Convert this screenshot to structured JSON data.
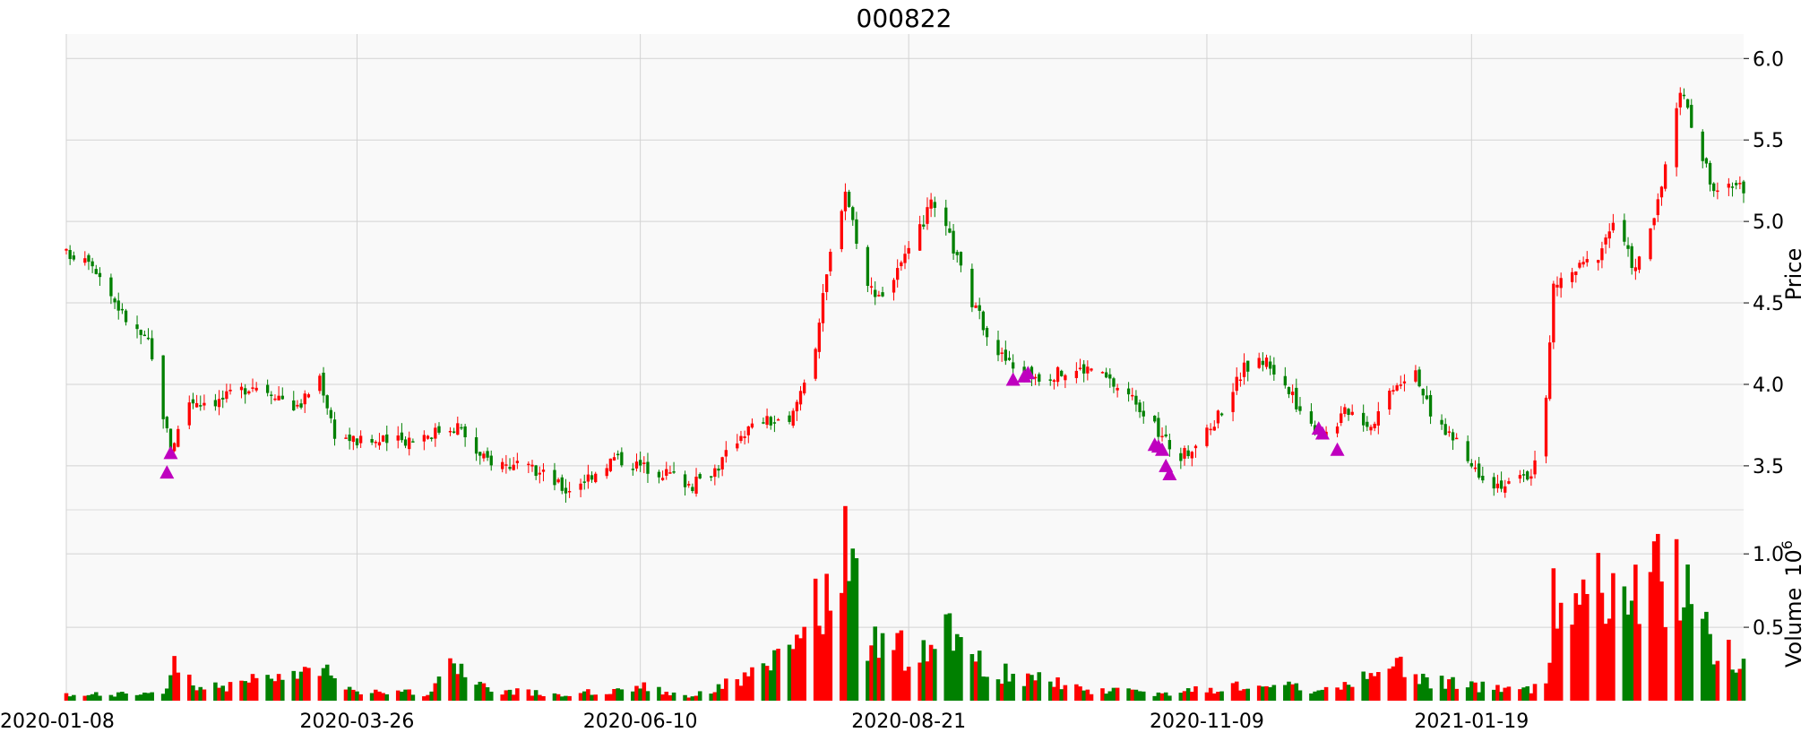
{
  "chart_data": {
    "type": "candlestick",
    "title": "000822",
    "price_ylabel": "Price",
    "volume_ylabel": "Volume",
    "volume_exponent_label": "10",
    "volume_exponent": "6",
    "up_color": "#ff0000",
    "down_color": "#008000",
    "marker_color": "#bf00bf",
    "panel_background": "#f9f9f9",
    "grid": true,
    "price_ylim": [
      3.23,
      6.15
    ],
    "volume_ylim": [
      0,
      1.3
    ],
    "price_ticks": [
      "3.5",
      "4.0",
      "4.5",
      "5.0",
      "5.5",
      "6.0"
    ],
    "volume_ticks": [
      "0.5",
      "1.0"
    ],
    "x_ticks": [
      {
        "date": "2020-01-08",
        "label": "2020-01-08"
      },
      {
        "date": "2020-03-26",
        "label": "2020-03-26"
      },
      {
        "date": "2020-06-10",
        "label": "2020-06-10"
      },
      {
        "date": "2020-08-21",
        "label": "2020-08-21"
      },
      {
        "date": "2020-11-09",
        "label": "2020-11-09"
      },
      {
        "date": "2021-01-19",
        "label": "2021-01-19"
      }
    ],
    "x_range": [
      "2020-01-08",
      "2021-04-02"
    ],
    "close_path": [
      [
        "2020-01-08",
        4.8
      ],
      [
        "2020-01-14",
        4.79
      ],
      [
        "2020-01-20",
        4.55
      ],
      [
        "2020-01-24",
        4.4
      ],
      [
        "2020-01-30",
        4.25
      ],
      [
        "2020-02-05",
        3.6
      ],
      [
        "2020-02-10",
        3.9
      ],
      [
        "2020-02-18",
        3.9
      ],
      [
        "2020-02-27",
        4.0
      ],
      [
        "2020-03-04",
        3.95
      ],
      [
        "2020-03-10",
        3.85
      ],
      [
        "2020-03-16",
        4.05
      ],
      [
        "2020-03-20",
        3.7
      ],
      [
        "2020-03-26",
        3.65
      ],
      [
        "2020-04-06",
        3.65
      ],
      [
        "2020-04-14",
        3.7
      ],
      [
        "2020-04-22",
        3.75
      ],
      [
        "2020-04-28",
        3.55
      ],
      [
        "2020-05-07",
        3.5
      ],
      [
        "2020-05-15",
        3.45
      ],
      [
        "2020-05-21",
        3.35
      ],
      [
        "2020-05-28",
        3.45
      ],
      [
        "2020-06-03",
        3.55
      ],
      [
        "2020-06-10",
        3.5
      ],
      [
        "2020-06-18",
        3.45
      ],
      [
        "2020-06-24",
        3.38
      ],
      [
        "2020-07-01",
        3.5
      ],
      [
        "2020-07-07",
        3.7
      ],
      [
        "2020-07-13",
        3.78
      ],
      [
        "2020-07-20",
        3.75
      ],
      [
        "2020-07-27",
        4.25
      ],
      [
        "2020-07-31",
        4.8
      ],
      [
        "2020-08-04",
        5.2
      ],
      [
        "2020-08-10",
        4.6
      ],
      [
        "2020-08-14",
        4.55
      ],
      [
        "2020-08-21",
        4.8
      ],
      [
        "2020-08-27",
        5.1
      ],
      [
        "2020-09-01",
        4.9
      ],
      [
        "2020-09-07",
        4.5
      ],
      [
        "2020-09-14",
        4.2
      ],
      [
        "2020-09-18",
        4.1
      ],
      [
        "2020-09-25",
        4.05
      ],
      [
        "2020-10-09",
        4.1
      ],
      [
        "2020-10-15",
        4.0
      ],
      [
        "2020-10-21",
        3.9
      ],
      [
        "2020-10-27",
        3.7
      ],
      [
        "2020-11-02",
        3.55
      ],
      [
        "2020-11-09",
        3.7
      ],
      [
        "2020-11-13",
        3.85
      ],
      [
        "2020-11-19",
        4.1
      ],
      [
        "2020-11-25",
        4.15
      ],
      [
        "2020-12-01",
        3.95
      ],
      [
        "2020-12-07",
        3.75
      ],
      [
        "2020-12-11",
        3.7
      ],
      [
        "2020-12-17",
        3.85
      ],
      [
        "2020-12-23",
        3.75
      ],
      [
        "2020-12-29",
        4.0
      ],
      [
        "2021-01-04",
        4.1
      ],
      [
        "2021-01-08",
        3.8
      ],
      [
        "2021-01-13",
        3.7
      ],
      [
        "2021-01-19",
        3.5
      ],
      [
        "2021-01-25",
        3.4
      ],
      [
        "2021-01-29",
        3.38
      ],
      [
        "2021-02-04",
        3.45
      ],
      [
        "2021-02-08",
        3.9
      ],
      [
        "2021-02-10",
        4.6
      ],
      [
        "2021-02-22",
        4.8
      ],
      [
        "2021-02-26",
        5.0
      ],
      [
        "2021-03-04",
        4.7
      ],
      [
        "2021-03-10",
        5.1
      ],
      [
        "2021-03-16",
        5.8
      ],
      [
        "2021-03-19",
        5.6
      ],
      [
        "2021-03-25",
        5.2
      ],
      [
        "2021-04-02",
        5.2
      ]
    ],
    "volume_path": [
      [
        "2020-01-08",
        0.04
      ],
      [
        "2020-02-03",
        0.05
      ],
      [
        "2020-02-05",
        0.25
      ],
      [
        "2020-02-14",
        0.09
      ],
      [
        "2020-03-02",
        0.15
      ],
      [
        "2020-03-16",
        0.22
      ],
      [
        "2020-03-26",
        0.08
      ],
      [
        "2020-04-14",
        0.05
      ],
      [
        "2020-04-20",
        0.24
      ],
      [
        "2020-04-30",
        0.08
      ],
      [
        "2020-05-20",
        0.04
      ],
      [
        "2020-06-10",
        0.1
      ],
      [
        "2020-06-24",
        0.03
      ],
      [
        "2020-07-07",
        0.16
      ],
      [
        "2020-07-20",
        0.3
      ],
      [
        "2020-07-29",
        0.75
      ],
      [
        "2020-08-03",
        1.1
      ],
      [
        "2020-08-10",
        0.45
      ],
      [
        "2020-08-21",
        0.35
      ],
      [
        "2020-09-01",
        0.45
      ],
      [
        "2020-09-14",
        0.2
      ],
      [
        "2020-10-09",
        0.08
      ],
      [
        "2020-10-27",
        0.05
      ],
      [
        "2020-11-09",
        0.08
      ],
      [
        "2020-11-19",
        0.12
      ],
      [
        "2020-12-11",
        0.08
      ],
      [
        "2020-12-29",
        0.25
      ],
      [
        "2021-01-08",
        0.15
      ],
      [
        "2021-01-19",
        0.1
      ],
      [
        "2021-02-04",
        0.08
      ],
      [
        "2021-02-08",
        0.15
      ],
      [
        "2021-02-10",
        0.7
      ],
      [
        "2021-03-04",
        0.8
      ],
      [
        "2021-03-16",
        0.95
      ],
      [
        "2021-03-25",
        0.35
      ],
      [
        "2021-04-02",
        0.3
      ]
    ],
    "signal_markers": [
      [
        "2020-02-04",
        3.46
      ],
      [
        "2020-02-05",
        3.58
      ],
      [
        "2020-09-18",
        4.03
      ],
      [
        "2020-09-21",
        4.05
      ],
      [
        "2020-09-22",
        4.07
      ],
      [
        "2020-10-26",
        3.63
      ],
      [
        "2020-10-27",
        3.62
      ],
      [
        "2020-10-28",
        3.6
      ],
      [
        "2020-10-29",
        3.5
      ],
      [
        "2020-10-30",
        3.45
      ],
      [
        "2020-12-09",
        3.73
      ],
      [
        "2020-12-10",
        3.7
      ],
      [
        "2020-12-14",
        3.6
      ]
    ]
  }
}
